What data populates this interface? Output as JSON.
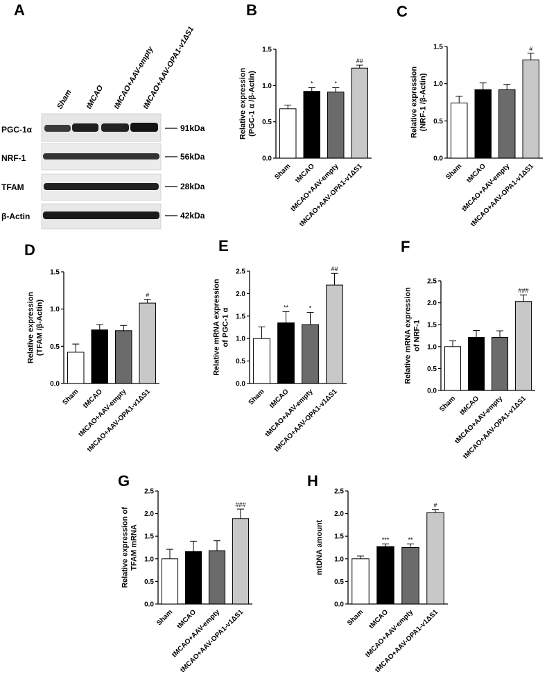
{
  "panels": {
    "A": "A",
    "B": "B",
    "C": "C",
    "D": "D",
    "E": "E",
    "F": "F",
    "G": "G",
    "H": "H"
  },
  "blot": {
    "lanes": [
      "Sham",
      "tMCAO",
      "tMCAO+AAV-empty",
      "tMCAO+AAV-OPA1-v1ΔS1"
    ],
    "rows": [
      {
        "label": "PGC-1α",
        "kda": "91kDa"
      },
      {
        "label": "NRF-1",
        "kda": "56kDa"
      },
      {
        "label": "TFAM",
        "kda": "28kDa"
      },
      {
        "label": "β-Actin",
        "kda": "42kDa"
      }
    ]
  },
  "chart_data": [
    {
      "panel": "B",
      "type": "bar",
      "categories": [
        "Sham",
        "tMCAO",
        "tMCAO+AAV-empty",
        "tMCAO+AAV-OPA1-v1ΔS1"
      ],
      "values": [
        0.68,
        0.92,
        0.91,
        1.24
      ],
      "errors": [
        0.05,
        0.05,
        0.06,
        0.04
      ],
      "significance": [
        "",
        "*",
        "*",
        "##"
      ],
      "ylabel_lines": [
        "Relative expression",
        "(PGC-1 α /β-Actin)"
      ],
      "yticks": [
        "0.0",
        "0.5",
        "1.0",
        "1.5"
      ],
      "ylim": [
        0,
        1.5
      ],
      "colors": [
        "#ffffff",
        "#000000",
        "#6b6b6b",
        "#c8c8c8"
      ]
    },
    {
      "panel": "C",
      "type": "bar",
      "categories": [
        "Sham",
        "tMCAO",
        "tMCAO+AAV-empty",
        "tMCAO+AAV-OPA1-v1ΔS1"
      ],
      "values": [
        0.74,
        0.92,
        0.92,
        1.32
      ],
      "errors": [
        0.09,
        0.09,
        0.07,
        0.09
      ],
      "significance": [
        "",
        "",
        "",
        "#"
      ],
      "ylabel_lines": [
        "Relative expression",
        "(NRF-1 /β-Actin)"
      ],
      "yticks": [
        "0.0",
        "0.5",
        "1.0",
        "1.5"
      ],
      "ylim": [
        0,
        1.5
      ],
      "colors": [
        "#ffffff",
        "#000000",
        "#6b6b6b",
        "#c8c8c8"
      ]
    },
    {
      "panel": "D",
      "type": "bar",
      "categories": [
        "Sham",
        "tMCAO",
        "tMCAO+AAV-empty",
        "tMCAO+AAV-OPA1-v1ΔS1"
      ],
      "values": [
        0.42,
        0.72,
        0.71,
        1.08
      ],
      "errors": [
        0.11,
        0.07,
        0.07,
        0.05
      ],
      "significance": [
        "",
        "",
        "",
        "#"
      ],
      "ylabel_lines": [
        "Relative expression",
        "(TFAM /β-Actin)"
      ],
      "yticks": [
        "0.0",
        "0.5",
        "1.0",
        "1.5"
      ],
      "ylim": [
        0,
        1.5
      ],
      "colors": [
        "#ffffff",
        "#000000",
        "#6b6b6b",
        "#c8c8c8"
      ]
    },
    {
      "panel": "E",
      "type": "bar",
      "categories": [
        "Sham",
        "tMCAO",
        "tMCAO+AAV-empty",
        "tMCAO+AAV-OPA1-v1ΔS1"
      ],
      "values": [
        1.0,
        1.35,
        1.31,
        2.19
      ],
      "errors": [
        0.26,
        0.25,
        0.27,
        0.26
      ],
      "significance": [
        "",
        "**",
        "*",
        "##"
      ],
      "ylabel_lines": [
        "Relative mRNA expression",
        "of PGC-1 α"
      ],
      "yticks": [
        "0.0",
        "0.5",
        "1.0",
        "1.5",
        "2.0",
        "2.5"
      ],
      "ylim": [
        0,
        2.5
      ],
      "colors": [
        "#ffffff",
        "#000000",
        "#6b6b6b",
        "#c8c8c8"
      ]
    },
    {
      "panel": "F",
      "type": "bar",
      "categories": [
        "Sham",
        "tMCAO",
        "tMCAO+AAV-empty",
        "tMCAO+AAV-OPA1-v1ΔS1"
      ],
      "values": [
        1.0,
        1.21,
        1.21,
        2.03
      ],
      "errors": [
        0.13,
        0.16,
        0.15,
        0.15
      ],
      "significance": [
        "",
        "",
        "",
        "###"
      ],
      "ylabel_lines": [
        "Relative mRNA expression",
        "of NRF-1"
      ],
      "yticks": [
        "0.0",
        "0.5",
        "1.0",
        "1.5",
        "2.0",
        "2.5"
      ],
      "ylim": [
        0,
        2.5
      ],
      "colors": [
        "#ffffff",
        "#000000",
        "#6b6b6b",
        "#c8c8c8"
      ]
    },
    {
      "panel": "G",
      "type": "bar",
      "categories": [
        "Sham",
        "tMCAO",
        "tMCAO+AAV-empty",
        "tMCAO+AAV-OPA1-v1ΔS1"
      ],
      "values": [
        1.0,
        1.16,
        1.18,
        1.89
      ],
      "errors": [
        0.21,
        0.23,
        0.22,
        0.21
      ],
      "significance": [
        "",
        "",
        "",
        "###"
      ],
      "ylabel_lines": [
        "Relative expression of",
        "TFAM mRNA"
      ],
      "yticks": [
        "0.0",
        "0.5",
        "1.0",
        "1.5",
        "2.0",
        "2.5"
      ],
      "ylim": [
        0,
        2.5
      ],
      "colors": [
        "#ffffff",
        "#000000",
        "#6b6b6b",
        "#c8c8c8"
      ]
    },
    {
      "panel": "H",
      "type": "bar",
      "categories": [
        "Sham",
        "tMCAO",
        "tMCAO+AAV-empty",
        "tMCAO+AAV-OPA1-v1ΔS1"
      ],
      "values": [
        1.0,
        1.27,
        1.25,
        2.02
      ],
      "errors": [
        0.06,
        0.06,
        0.08,
        0.07
      ],
      "significance": [
        "",
        "***",
        "**",
        "#"
      ],
      "ylabel_lines": [
        "mtDNA amount"
      ],
      "yticks": [
        "0.0",
        "0.5",
        "1.0",
        "1.5",
        "2.0",
        "2.5"
      ],
      "ylim": [
        0,
        2.5
      ],
      "colors": [
        "#ffffff",
        "#000000",
        "#6b6b6b",
        "#c8c8c8"
      ]
    }
  ]
}
